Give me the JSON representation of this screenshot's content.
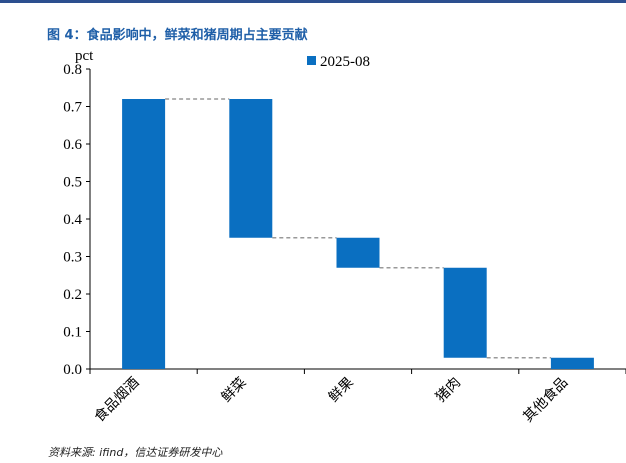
{
  "title": "图 4：食品影响中，鲜菜和猪周期占主要贡献",
  "source": "资料来源: ifind，信达证券研发中心",
  "chart_data": {
    "type": "bar",
    "subtype": "waterfall",
    "categories": [
      "食品烟酒",
      "鲜菜",
      "鲜果",
      "猪肉",
      "其他食品"
    ],
    "series": [
      {
        "name": "2025-08",
        "color": "#0a6fc1",
        "bars": [
          {
            "start": 0.0,
            "end": 0.72
          },
          {
            "start": 0.72,
            "end": 0.35
          },
          {
            "start": 0.35,
            "end": 0.27
          },
          {
            "start": 0.27,
            "end": 0.03
          },
          {
            "start": 0.03,
            "end": 0.0
          }
        ]
      }
    ],
    "ylabel": "pct",
    "ylim": [
      0,
      0.8
    ],
    "yticks": [
      "0.0",
      "0.1",
      "0.2",
      "0.3",
      "0.4",
      "0.5",
      "0.6",
      "0.7",
      "0.8"
    ],
    "legend_position": "top",
    "connector_color": "#999999",
    "grid": false
  }
}
